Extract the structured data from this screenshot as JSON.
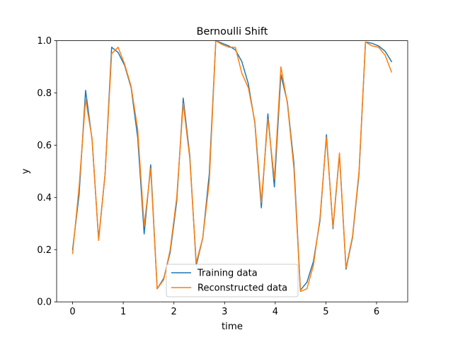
{
  "chart_data": {
    "type": "line",
    "title": "Bernoulli Shift",
    "xlabel": "time",
    "ylabel": "y",
    "xlim": [
      -0.315,
      6.615
    ],
    "ylim": [
      0.0,
      1.0
    ],
    "xticks": [
      0,
      1,
      2,
      3,
      4,
      5,
      6
    ],
    "xtick_labels": [
      "0",
      "1",
      "2",
      "3",
      "4",
      "5",
      "6"
    ],
    "yticks": [
      0.0,
      0.2,
      0.4,
      0.6,
      0.8,
      1.0
    ],
    "ytick_labels": [
      "0.0",
      "0.2",
      "0.4",
      "0.6",
      "0.8",
      "1.0"
    ],
    "grid": false,
    "legend_position": "lower-center",
    "x": [
      0.0,
      0.128,
      0.257,
      0.385,
      0.514,
      0.642,
      0.771,
      0.899,
      1.028,
      1.156,
      1.285,
      1.413,
      1.542,
      1.67,
      1.799,
      1.927,
      2.056,
      2.184,
      2.313,
      2.441,
      2.57,
      2.698,
      2.827,
      2.955,
      3.084,
      3.212,
      3.341,
      3.469,
      3.598,
      3.726,
      3.855,
      3.983,
      4.112,
      4.24,
      4.369,
      4.497,
      4.626,
      4.754,
      4.883,
      5.011,
      5.14,
      5.268,
      5.397,
      5.525,
      5.654,
      5.782,
      5.911,
      6.039,
      6.168,
      6.296
    ],
    "series": [
      {
        "name": "Training data",
        "color": "#1f77b4",
        "values": [
          0.2,
          0.41,
          0.81,
          0.62,
          0.24,
          0.49,
          0.975,
          0.955,
          0.905,
          0.82,
          0.63,
          0.26,
          0.525,
          0.05,
          0.09,
          0.19,
          0.385,
          0.78,
          0.56,
          0.14,
          0.245,
          0.49,
          1.0,
          0.99,
          0.98,
          0.965,
          0.92,
          0.835,
          0.685,
          0.36,
          0.72,
          0.44,
          0.87,
          0.765,
          0.53,
          0.045,
          0.075,
          0.155,
          0.31,
          0.64,
          0.28,
          0.565,
          0.125,
          0.245,
          0.49,
          0.995,
          0.99,
          0.98,
          0.96,
          0.92
        ]
      },
      {
        "name": "Reconstructed data",
        "color": "#ff7f0e",
        "values": [
          0.185,
          0.44,
          0.775,
          0.625,
          0.235,
          0.49,
          0.95,
          0.975,
          0.91,
          0.825,
          0.66,
          0.29,
          0.51,
          0.05,
          0.085,
          0.2,
          0.4,
          0.76,
          0.55,
          0.15,
          0.245,
          0.46,
          1.0,
          0.985,
          0.975,
          0.975,
          0.875,
          0.82,
          0.69,
          0.38,
          0.7,
          0.47,
          0.9,
          0.76,
          0.51,
          0.04,
          0.05,
          0.14,
          0.32,
          0.63,
          0.285,
          0.57,
          0.13,
          0.25,
          0.5,
          0.995,
          0.98,
          0.975,
          0.945,
          0.88
        ]
      }
    ]
  }
}
